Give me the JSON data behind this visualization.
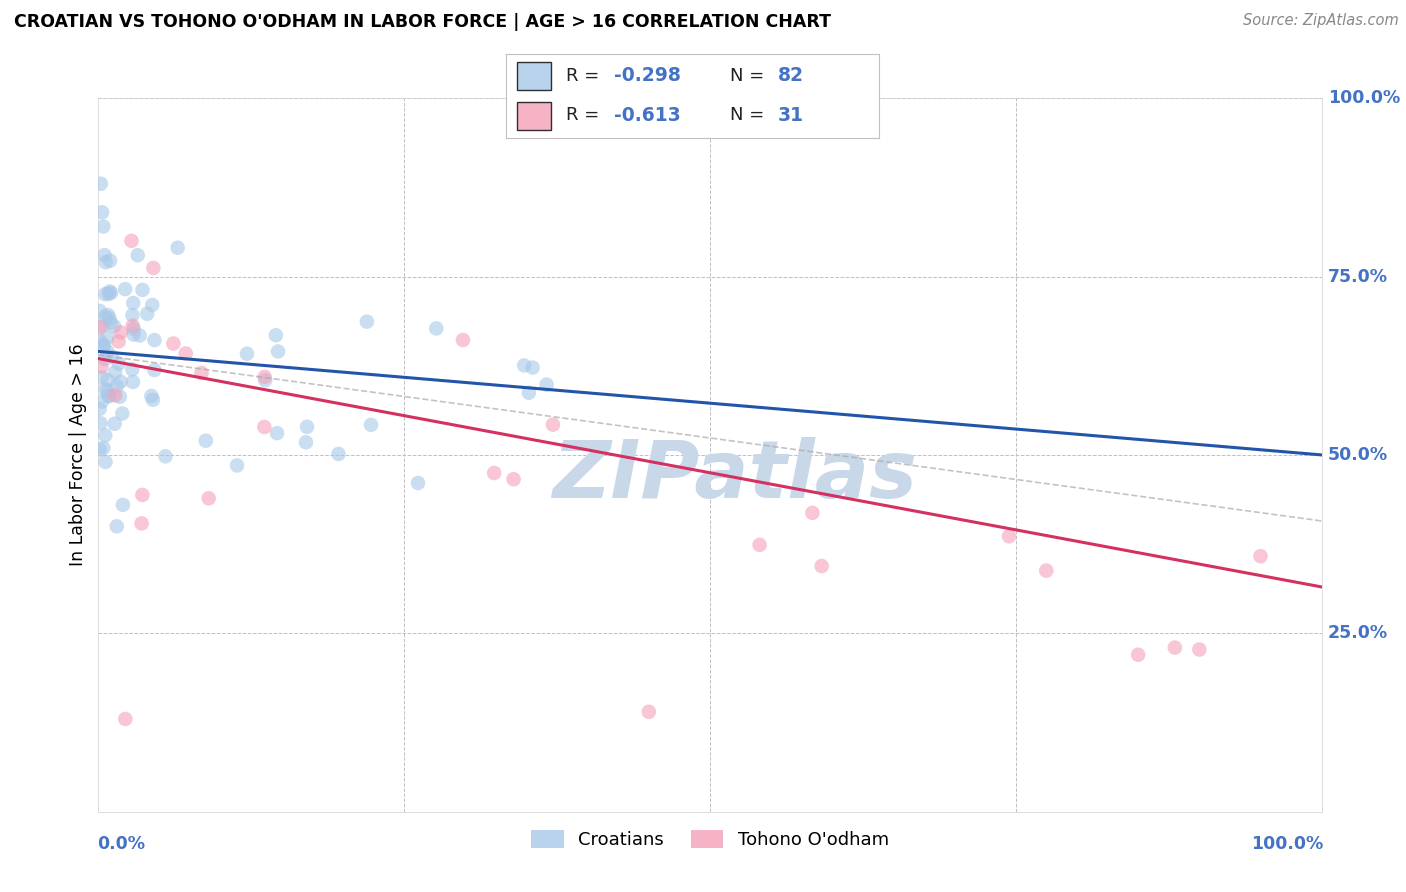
{
  "title": "CROATIAN VS TOHONO O'ODHAM IN LABOR FORCE | AGE > 16 CORRELATION CHART",
  "source": "Source: ZipAtlas.com",
  "ylabel": "In Labor Force | Age > 16",
  "legend_label1": "Croatians",
  "legend_label2": "Tohono O'odham",
  "legend_R1": "-0.298",
  "legend_N1": "82",
  "legend_R2": "-0.613",
  "legend_N2": "31",
  "blue_scatter_color": "#a8c8e8",
  "pink_scatter_color": "#f4a0b8",
  "blue_line_color": "#2255aa",
  "pink_line_color": "#d43060",
  "watermark_color": "#c8d8e8",
  "background_color": "#ffffff",
  "grid_color": "#c0c0c0",
  "axis_label_color": "#4472c4",
  "ytick_labels": [
    "100.0%",
    "75.0%",
    "50.0%",
    "25.0%"
  ],
  "ytick_values": [
    1.0,
    0.75,
    0.5,
    0.25
  ],
  "xlim": [
    0.0,
    1.0
  ],
  "ylim": [
    0.0,
    1.0
  ],
  "n_croatian": 82,
  "n_tohono": 31,
  "blue_line_x0": 0.0,
  "blue_line_y0": 0.645,
  "blue_line_x1": 1.0,
  "blue_line_y1": 0.5,
  "pink_line_x0": 0.0,
  "pink_line_y0": 0.635,
  "pink_line_x1": 1.0,
  "pink_line_y1": 0.315
}
